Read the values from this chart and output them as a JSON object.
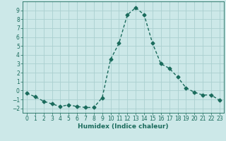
{
  "x": [
    0,
    1,
    2,
    3,
    4,
    5,
    6,
    7,
    8,
    9,
    10,
    11,
    12,
    13,
    14,
    15,
    16,
    17,
    18,
    19,
    20,
    21,
    22,
    23
  ],
  "y": [
    -0.3,
    -0.7,
    -1.2,
    -1.5,
    -1.8,
    -1.6,
    -1.8,
    -1.9,
    -1.9,
    -0.8,
    3.5,
    5.3,
    8.5,
    9.3,
    8.5,
    5.3,
    3.0,
    2.5,
    1.5,
    0.3,
    -0.2,
    -0.5,
    -0.5,
    -1.1
  ],
  "line_color": "#1a6b5c",
  "marker": "D",
  "markersize": 2.5,
  "linewidth": 1.0,
  "background_color": "#cce8e8",
  "grid_color": "#aacfcf",
  "xlabel": "Humidex (Indice chaleur)",
  "xlim": [
    -0.5,
    23.5
  ],
  "ylim": [
    -2.5,
    10.0
  ],
  "yticks": [
    -2,
    -1,
    0,
    1,
    2,
    3,
    4,
    5,
    6,
    7,
    8,
    9
  ],
  "xticks": [
    0,
    1,
    2,
    3,
    4,
    5,
    6,
    7,
    8,
    9,
    10,
    11,
    12,
    13,
    14,
    15,
    16,
    17,
    18,
    19,
    20,
    21,
    22,
    23
  ],
  "tick_fontsize": 5.5,
  "label_fontsize": 6.5
}
